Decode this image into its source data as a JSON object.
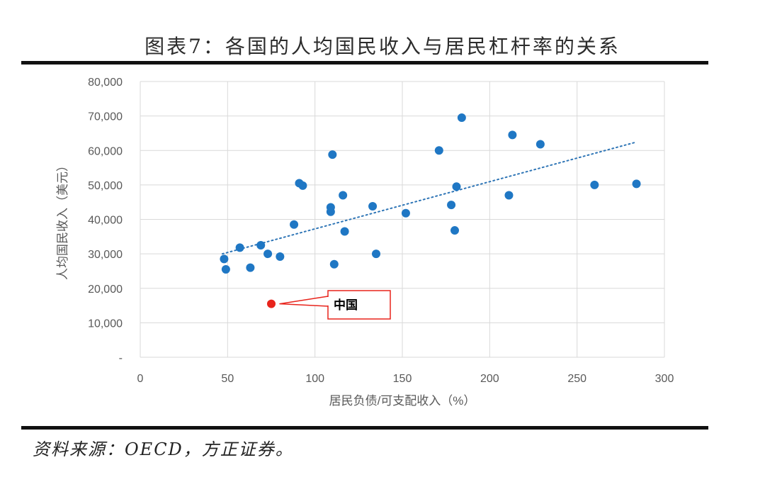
{
  "figure_title": "图表7：各国的人均国民收入与居民杠杆率的关系",
  "source_note": "资料来源：OECD，方正证券。",
  "colors": {
    "point": "#1f77c4",
    "china": "#e8241c",
    "trend": "#2e75b6",
    "grid": "#d9d9d9",
    "axis_text": "#595959"
  },
  "chart_data": {
    "type": "scatter",
    "xlabel": "居民负债/可支配收入（%）",
    "ylabel": "人均国民收入（美元）",
    "xlim": [
      0,
      300
    ],
    "ylim": [
      0,
      80000
    ],
    "x_ticks": [
      0,
      50,
      100,
      150,
      200,
      250,
      300
    ],
    "x_tick_labels": [
      "0",
      "50",
      "100",
      "150",
      "200",
      "250",
      "300"
    ],
    "y_ticks": [
      0,
      10000,
      20000,
      30000,
      40000,
      50000,
      60000,
      70000,
      80000
    ],
    "y_tick_labels": [
      "-",
      "10,000",
      "20,000",
      "30,000",
      "40,000",
      "50,000",
      "60,000",
      "70,000",
      "80,000"
    ],
    "grid": true,
    "series": [
      {
        "points": [
          [
            48,
            28500
          ],
          [
            49,
            25500
          ],
          [
            57,
            31800
          ],
          [
            63,
            26000
          ],
          [
            69,
            32500
          ],
          [
            73,
            30000
          ],
          [
            80,
            29200
          ],
          [
            88,
            38500
          ],
          [
            91,
            50500
          ],
          [
            93,
            49800
          ],
          [
            109,
            43500
          ],
          [
            109,
            42200
          ],
          [
            110,
            58800
          ],
          [
            111,
            27000
          ],
          [
            116,
            47000
          ],
          [
            117,
            36500
          ],
          [
            133,
            43800
          ],
          [
            135,
            30000
          ],
          [
            152,
            41800
          ],
          [
            171,
            60000
          ],
          [
            178,
            44200
          ],
          [
            180,
            36800
          ],
          [
            181,
            49500
          ],
          [
            184,
            69500
          ],
          [
            211,
            47000
          ],
          [
            213,
            64500
          ],
          [
            229,
            61800
          ],
          [
            260,
            50000
          ],
          [
            284,
            50300
          ]
        ]
      }
    ],
    "trendline": {
      "x": [
        47,
        283
      ],
      "y": [
        30000,
        62300
      ]
    },
    "highlight": {
      "x": 75,
      "y": 15500,
      "label": "中国"
    }
  }
}
